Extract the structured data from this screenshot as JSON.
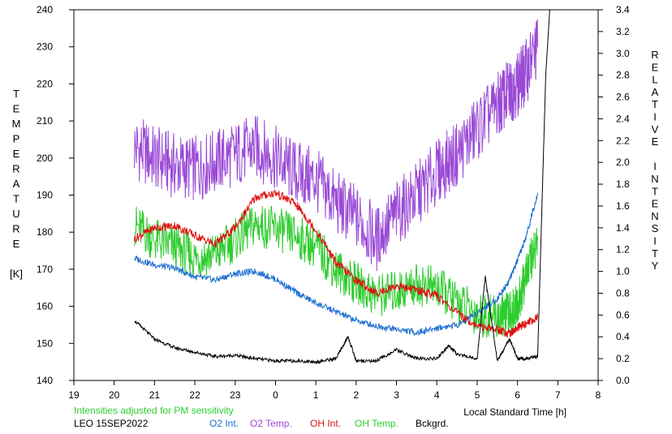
{
  "chart_data": {
    "type": "line",
    "title": "",
    "note": "Intensities adjusted for PM sensitivity",
    "station_date": "LEO 15SEP2022",
    "xlabel": "Local Standard Time [h]",
    "ylabel_left": [
      "T",
      "E",
      "M",
      "P",
      "E",
      "R",
      "A",
      "T",
      "U",
      "R",
      "E",
      "",
      "[K]"
    ],
    "ylabel_right": [
      "R",
      "E",
      "L",
      "A",
      "T",
      "I",
      "V",
      "E",
      "",
      "I",
      "N",
      "T",
      "E",
      "N",
      "S",
      "I",
      "T",
      "Y"
    ],
    "x_ticks": [
      "19",
      "20",
      "21",
      "22",
      "23",
      "0",
      "1",
      "2",
      "3",
      "4",
      "5",
      "6",
      "7",
      "8"
    ],
    "y_left_ticks": [
      "140",
      "150",
      "160",
      "170",
      "180",
      "190",
      "200",
      "210",
      "220",
      "230",
      "240"
    ],
    "y_right_ticks": [
      "0.0",
      "0.2",
      "0.4",
      "0.6",
      "0.8",
      "1.0",
      "1.2",
      "1.4",
      "1.6",
      "1.8",
      "2.0",
      "2.2",
      "2.4",
      "2.6",
      "2.8",
      "3.0",
      "3.2",
      "3.4"
    ],
    "x_range_hours": [
      19,
      32
    ],
    "y_left_range": [
      140,
      240
    ],
    "y_right_range": [
      0.0,
      3.4
    ],
    "series": [
      {
        "name": "O2 Int.",
        "axis": "right",
        "color": "#1f6fd1",
        "x": [
          20.5,
          21.0,
          21.5,
          22.0,
          22.5,
          23.0,
          23.5,
          24.0,
          24.5,
          25.0,
          25.5,
          26.0,
          26.5,
          27.0,
          27.5,
          28.0,
          28.5,
          29.0,
          29.5,
          29.8,
          30.0,
          30.2,
          30.5
        ],
        "y": [
          1.12,
          1.06,
          1.03,
          0.95,
          0.92,
          0.98,
          1.0,
          0.93,
          0.81,
          0.71,
          0.63,
          0.55,
          0.5,
          0.47,
          0.44,
          0.48,
          0.51,
          0.62,
          0.75,
          0.92,
          1.1,
          1.3,
          1.72
        ]
      },
      {
        "name": "O2 Temp.",
        "axis": "left",
        "color": "#9a49d6",
        "x": [
          20.5,
          21.0,
          21.5,
          22.0,
          22.5,
          23.0,
          23.5,
          24.0,
          24.5,
          25.0,
          25.5,
          26.0,
          26.5,
          27.0,
          27.5,
          28.0,
          28.5,
          29.0,
          29.5,
          29.8,
          30.0,
          30.2,
          30.5
        ],
        "y": [
          203,
          200,
          198,
          197,
          199,
          201,
          203,
          200,
          196,
          194,
          188,
          184,
          178,
          185,
          190,
          196,
          201,
          208,
          214,
          218,
          220,
          223,
          230
        ]
      },
      {
        "name": "OH Int.",
        "axis": "right",
        "color": "#e01010",
        "x": [
          20.5,
          21.0,
          21.5,
          22.0,
          22.5,
          23.0,
          23.5,
          24.0,
          24.5,
          25.0,
          25.5,
          26.0,
          26.5,
          27.0,
          27.5,
          28.0,
          28.5,
          29.0,
          29.5,
          29.8,
          30.0,
          30.2,
          30.5
        ],
        "y": [
          1.3,
          1.4,
          1.42,
          1.33,
          1.25,
          1.4,
          1.68,
          1.72,
          1.62,
          1.38,
          1.08,
          0.92,
          0.8,
          0.87,
          0.83,
          0.78,
          0.62,
          0.5,
          0.47,
          0.43,
          0.48,
          0.52,
          0.58
        ]
      },
      {
        "name": "OH Temp.",
        "axis": "left",
        "color": "#2ecc2e",
        "x": [
          20.5,
          21.0,
          21.5,
          22.0,
          22.5,
          23.0,
          23.5,
          24.0,
          24.5,
          25.0,
          25.5,
          26.0,
          26.5,
          27.0,
          27.5,
          28.0,
          28.5,
          29.0,
          29.5,
          29.8,
          30.0,
          30.2,
          30.5
        ],
        "y": [
          182,
          178,
          176,
          173,
          174,
          178,
          182,
          181,
          179,
          176,
          170,
          166,
          163,
          164,
          166,
          165,
          161,
          158,
          157,
          158,
          160,
          168,
          178
        ]
      },
      {
        "name": "Bckgrd.",
        "axis": "right",
        "color": "#000000",
        "x": [
          20.5,
          21.0,
          21.5,
          22.0,
          22.5,
          23.0,
          23.5,
          24.0,
          24.5,
          25.0,
          25.5,
          25.8,
          26.0,
          26.5,
          27.0,
          27.5,
          28.0,
          28.3,
          28.5,
          29.0,
          29.2,
          29.5,
          29.8,
          30.0,
          30.2,
          30.5,
          30.7,
          30.8
        ],
        "y": [
          0.55,
          0.38,
          0.3,
          0.26,
          0.22,
          0.23,
          0.2,
          0.18,
          0.18,
          0.17,
          0.2,
          0.4,
          0.18,
          0.18,
          0.28,
          0.2,
          0.2,
          0.32,
          0.24,
          0.2,
          0.95,
          0.18,
          0.38,
          0.2,
          0.2,
          0.22,
          2.8,
          3.4
        ]
      }
    ],
    "legend": [
      "O2 Int.",
      "O2 Temp.",
      "OH Int.",
      "OH Temp.",
      "Bckgrd."
    ],
    "note_color": "#2ecc2e",
    "grid": false
  }
}
